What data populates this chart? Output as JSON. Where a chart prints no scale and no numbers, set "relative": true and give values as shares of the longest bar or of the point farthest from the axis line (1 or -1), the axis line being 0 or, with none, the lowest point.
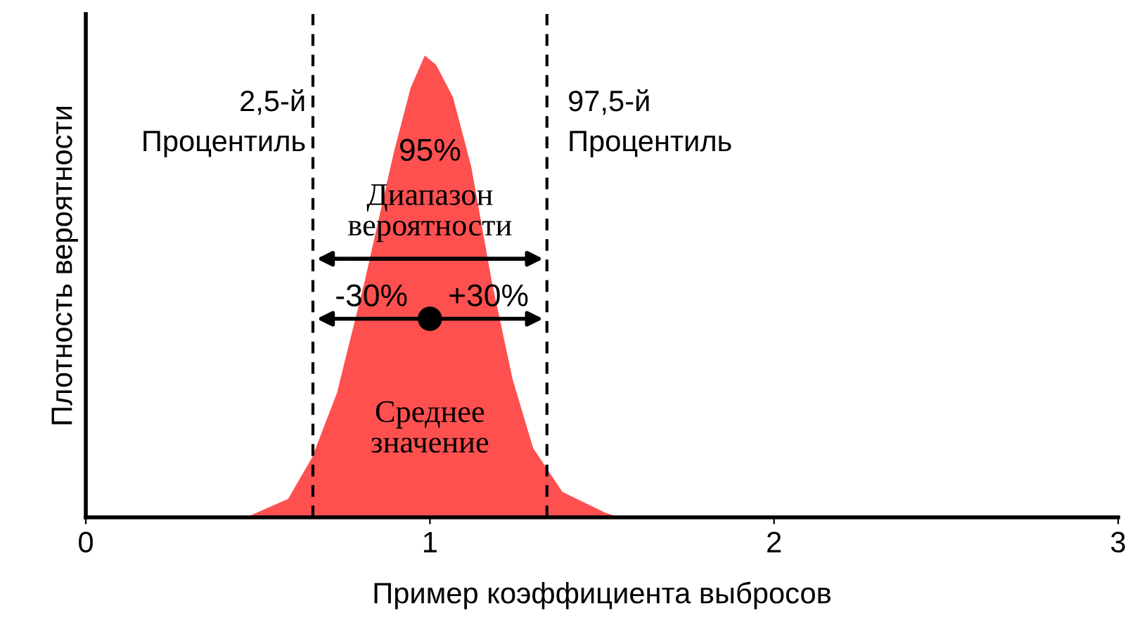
{
  "chart_data": {
    "type": "area",
    "relative": true,
    "xlabel": "Пример коэффициента выбросов",
    "ylabel": "Плотность вероятности",
    "xlim": [
      0,
      3
    ],
    "xticks": [
      0,
      1,
      2,
      3
    ],
    "grid": false,
    "legend": false,
    "series": [
      {
        "color": "#ff5050",
        "x": [
          0,
          0.466,
          0.588,
          0.658,
          0.73,
          0.81,
          0.895,
          0.944,
          0.985,
          1.018,
          1.067,
          1.12,
          1.18,
          1.24,
          1.3,
          1.385,
          1.51,
          1.55,
          3
        ],
        "values": [
          0,
          0,
          0.04,
          0.13,
          0.27,
          0.51,
          0.79,
          0.93,
          1,
          0.98,
          0.91,
          0.76,
          0.51,
          0.3,
          0.15,
          0.055,
          0.01,
          0,
          0
        ]
      },
      {
        "type": "scatter",
        "color": "#000000",
        "marker": "circle",
        "x": [
          1
        ],
        "values": [
          0.43
        ]
      }
    ],
    "ref_lines": [
      {
        "axis": "x",
        "value": 0.66,
        "label": "2,5-й\nПроцентиль",
        "color": "#000000",
        "line_style": "dashed"
      },
      {
        "axis": "x",
        "value": 1.34,
        "label": "97,5-й\nПроцентиль",
        "color": "#000000",
        "line_style": "dashed"
      }
    ],
    "annotations": [
      "95%",
      "Диапазон\nвероятности",
      "-30%",
      "+30%",
      "Среднее\nзначение"
    ]
  }
}
